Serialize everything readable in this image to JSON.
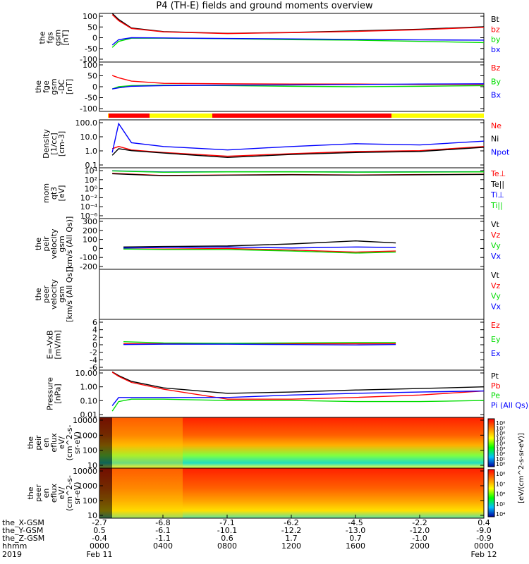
{
  "title": "P4 (TH-E) fields and ground moments overview",
  "colors": {
    "black": "#000000",
    "red": "#ff0000",
    "green": "#00dd00",
    "blue": "#0000ff",
    "yellow": "#ffff00"
  },
  "chart_data": [
    {
      "type": "line",
      "name": "fgs_gsm",
      "ylabel": [
        "the",
        "fgs",
        "gsm",
        "[nT]"
      ],
      "ylim": [
        -100,
        100
      ],
      "yticks": [
        "100",
        "50",
        "0",
        "-50",
        "-100"
      ],
      "legend": [
        "Bt",
        "bz",
        "by",
        "bx"
      ],
      "series": [
        {
          "name": "Bt",
          "color": "#000000",
          "x": [
            0.8,
            1.2,
            2,
            4,
            8,
            12,
            16,
            20,
            24
          ],
          "y": [
            100,
            75,
            40,
            25,
            18,
            22,
            28,
            35,
            45
          ]
        },
        {
          "name": "bz",
          "color": "#ff0000",
          "x": [
            0.8,
            1.2,
            2,
            4,
            8,
            12,
            16,
            20,
            24
          ],
          "y": [
            95,
            70,
            38,
            24,
            17,
            21,
            26,
            33,
            43
          ]
        },
        {
          "name": "by",
          "color": "#00dd00",
          "x": [
            0.8,
            1.2,
            2,
            4,
            8,
            12,
            16,
            20,
            24
          ],
          "y": [
            -40,
            -15,
            -2,
            -2,
            -4,
            -8,
            -10,
            -15,
            -20
          ]
        },
        {
          "name": "bx",
          "color": "#0000ff",
          "x": [
            0.8,
            1.2,
            2,
            4,
            8,
            12,
            16,
            20,
            24
          ],
          "y": [
            -30,
            -8,
            0,
            -1,
            -3,
            -5,
            -7,
            -9,
            -10
          ]
        }
      ]
    },
    {
      "type": "line",
      "name": "fge_gsm_dc",
      "ylabel": [
        "the",
        "fge",
        "gsm",
        "-DC",
        "[nT]"
      ],
      "ylim": [
        -120,
        100
      ],
      "yticks": [
        "100",
        "50",
        "0",
        "-50",
        "-100"
      ],
      "legend": [
        "Bz",
        "By",
        "Bx"
      ],
      "series": [
        {
          "name": "Bz",
          "color": "#ff0000",
          "x": [
            0.8,
            1.2,
            2,
            4,
            8,
            12,
            16,
            20,
            24
          ],
          "y": [
            40,
            30,
            15,
            5,
            3,
            2,
            2,
            0,
            0
          ]
        },
        {
          "name": "By",
          "color": "#00dd00",
          "x": [
            0.8,
            1.2,
            2,
            4,
            8,
            12,
            16,
            20,
            24
          ],
          "y": [
            -20,
            -10,
            -5,
            -3,
            -5,
            -8,
            -10,
            -8,
            -5
          ]
        },
        {
          "name": "Bx",
          "color": "#0000ff",
          "x": [
            0.8,
            1.2,
            2,
            4,
            8,
            12,
            16,
            20,
            24
          ],
          "y": [
            -20,
            -15,
            -8,
            -5,
            -3,
            -2,
            0,
            2,
            3
          ]
        }
      ]
    },
    {
      "type": "line",
      "name": "density",
      "ylabel": [
        "Density",
        "[1/cc]",
        "[cm-3]"
      ],
      "ylog": true,
      "ylim": [
        0.03,
        200
      ],
      "yticks": [
        "100.0",
        "10.0",
        "1.0",
        "0.1"
      ],
      "legend": [
        "Ne",
        "Ni",
        "Npot"
      ],
      "series": [
        {
          "name": "Ne",
          "color": "#ff0000",
          "x": [
            0.8,
            1.2,
            2,
            4,
            8,
            12,
            16,
            20,
            24
          ],
          "y": [
            1,
            1.5,
            0.8,
            0.5,
            0.25,
            0.4,
            0.6,
            0.7,
            1.5
          ]
        },
        {
          "name": "Ni",
          "color": "#000000",
          "x": [
            0.8,
            1.2,
            2,
            4,
            8,
            12,
            16,
            20,
            24
          ],
          "y": [
            0.3,
            1,
            0.7,
            0.45,
            0.2,
            0.35,
            0.5,
            0.6,
            1.3
          ]
        },
        {
          "name": "Npot",
          "color": "#0000ff",
          "x": [
            0.8,
            1.2,
            2,
            4,
            8,
            12,
            16,
            20,
            24
          ],
          "y": [
            0.5,
            100,
            3,
            1.5,
            0.8,
            1.5,
            2.5,
            2,
            4
          ]
        }
      ]
    },
    {
      "type": "line",
      "name": "temperature",
      "ylabel": [
        "mom",
        "qt3",
        "[eV]"
      ],
      "ylog": true,
      "ylim": [
        1e-07,
        100000
      ],
      "yticks": [
        "10⁴",
        "10²",
        "10⁰",
        "10⁻²",
        "10⁻⁴",
        "10⁻⁶"
      ],
      "legend": [
        "Te⊥",
        "Te||",
        "Ti⊥",
        "Ti||"
      ],
      "series": [
        {
          "name": "Te⊥",
          "color": "#ff0000",
          "x": [
            0.8,
            4,
            8,
            12,
            16,
            20,
            24
          ],
          "y": [
            5000,
            1500,
            2000,
            2500,
            2000,
            2500,
            3000
          ]
        },
        {
          "name": "Te||",
          "color": "#000000",
          "x": [
            0.8,
            4,
            8,
            12,
            16,
            20,
            24
          ],
          "y": [
            4000,
            1300,
            1800,
            2200,
            1800,
            2200,
            2700
          ]
        },
        {
          "name": "Ti⊥",
          "color": "#0000ff",
          "x": [
            0.8,
            4,
            8,
            12,
            16,
            20,
            24
          ],
          "y": [
            20000,
            10000,
            12000,
            12000,
            10000,
            11000,
            12000
          ]
        },
        {
          "name": "Ti||",
          "color": "#00dd00",
          "x": [
            0.8,
            4,
            8,
            12,
            16,
            20,
            24
          ],
          "y": [
            18000,
            9000,
            11000,
            11000,
            9500,
            10000,
            11000
          ]
        }
      ]
    },
    {
      "type": "line",
      "name": "peir_velocity",
      "ylabel": [
        "the",
        "peir",
        "velocity",
        "gsm",
        "[km/s (All Qs)]"
      ],
      "ylim": [
        -200,
        300
      ],
      "yticks": [
        "300",
        "200",
        "100",
        "0",
        "-100",
        "-200"
      ],
      "legend": [
        "Vt",
        "Vz",
        "Vy",
        "Vx"
      ],
      "series": [
        {
          "name": "Vt",
          "color": "#000000",
          "x": [
            1.5,
            4,
            8,
            12,
            16,
            18.5
          ],
          "y": [
            20,
            25,
            30,
            50,
            80,
            60
          ]
        },
        {
          "name": "Vz",
          "color": "#ff0000",
          "x": [
            1.5,
            4,
            8,
            12,
            16,
            18.5
          ],
          "y": [
            0,
            0,
            5,
            -10,
            -30,
            -20
          ]
        },
        {
          "name": "Vy",
          "color": "#00dd00",
          "x": [
            1.5,
            4,
            8,
            12,
            16,
            18.5
          ],
          "y": [
            0,
            -5,
            -5,
            -20,
            -40,
            -30
          ]
        },
        {
          "name": "Vx",
          "color": "#0000ff",
          "x": [
            1.5,
            4,
            8,
            12,
            16,
            18.5
          ],
          "y": [
            10,
            15,
            20,
            10,
            20,
            15
          ]
        }
      ]
    },
    {
      "type": "line",
      "name": "peer_velocity",
      "ylabel": [
        "the",
        "peer",
        "velocity",
        "gsm",
        "[km/s (All Qs)]"
      ],
      "legend": [
        "Vt",
        "Vz",
        "Vy",
        "Vx"
      ],
      "series": []
    },
    {
      "type": "line",
      "name": "e_vxb",
      "ylabel": [
        "E=-VxB",
        "[mV/m]"
      ],
      "ylim": [
        -6.5,
        6
      ],
      "yticks": [
        "6",
        "4",
        "2",
        "0",
        "-2",
        "-4",
        "-6"
      ],
      "legend": [
        "Ez",
        "Ey",
        "Ex"
      ],
      "series": [
        {
          "name": "Ez",
          "color": "#ff0000",
          "x": [
            1.5,
            4,
            8,
            12,
            16,
            18.5
          ],
          "y": [
            0,
            0,
            0,
            0,
            0,
            0
          ]
        },
        {
          "name": "Ey",
          "color": "#00dd00",
          "x": [
            1.5,
            4,
            8,
            12,
            16,
            18.5
          ],
          "y": [
            0.5,
            0.2,
            0.1,
            0.2,
            0.3,
            0.3
          ]
        },
        {
          "name": "Ex",
          "color": "#0000ff",
          "x": [
            1.5,
            4,
            8,
            12,
            16,
            18.5
          ],
          "y": [
            -0.2,
            -0.1,
            -0.1,
            -0.2,
            -0.3,
            -0.2
          ]
        }
      ]
    },
    {
      "type": "line",
      "name": "pressure",
      "ylabel": [
        "Pressure",
        "[nPa]"
      ],
      "ylog": true,
      "ylim": [
        0.007,
        20
      ],
      "yticks": [
        "10.00",
        "1.00",
        "0.10",
        "0.01"
      ],
      "legend": [
        "Pt",
        "Pb",
        "Pe",
        "Pi (All Qs)"
      ],
      "series": [
        {
          "name": "Pt",
          "color": "#000000",
          "x": [
            0.8,
            1.2,
            2,
            4,
            8,
            12,
            16,
            20,
            24
          ],
          "y": [
            15,
            8,
            3,
            1,
            0.4,
            0.5,
            0.7,
            0.9,
            1.2
          ]
        },
        {
          "name": "Pb",
          "color": "#ff0000",
          "x": [
            0.8,
            1.2,
            2,
            4,
            8,
            12,
            16,
            20,
            24
          ],
          "y": [
            14,
            7,
            2.5,
            0.8,
            0.15,
            0.15,
            0.2,
            0.3,
            0.6
          ]
        },
        {
          "name": "Pe",
          "color": "#00dd00",
          "x": [
            0.8,
            1.2,
            2,
            4,
            8,
            12,
            16,
            20,
            24
          ],
          "y": [
            0.02,
            0.1,
            0.15,
            0.15,
            0.12,
            0.12,
            0.1,
            0.1,
            0.12
          ]
        },
        {
          "name": "Pi",
          "color": "#0000ff",
          "x": [
            0.8,
            1.2,
            2,
            4,
            8,
            12,
            16,
            20,
            24
          ],
          "y": [
            0.05,
            0.2,
            0.2,
            0.2,
            0.2,
            0.3,
            0.4,
            0.5,
            0.6
          ]
        }
      ]
    },
    {
      "type": "heatmap",
      "name": "peir_en_eflux",
      "ylabel": [
        "the",
        "peir",
        "en",
        "eflux",
        "eV/",
        "(cm^2-s-",
        "sr-eV)"
      ],
      "ylog": true,
      "ylim": [
        5,
        20000
      ],
      "yticks": [
        "10000",
        "1000",
        "100",
        "10"
      ],
      "colorbar": {
        "label": "[eV/(cm^2-s-sr-eV)]",
        "ticks": [
          "10⁸",
          "10⁷",
          "10⁶",
          "10⁵",
          "10⁴",
          "10³",
          "10²",
          "10¹",
          "10⁰"
        ]
      }
    },
    {
      "type": "heatmap",
      "name": "peer_en_eflux",
      "ylabel": [
        "the",
        "peer",
        "en",
        "eflux",
        "eV/",
        "(cm^2-s-",
        "sr-eV)"
      ],
      "ylog": true,
      "ylim": [
        5,
        20000
      ],
      "yticks": [
        "10000",
        "1000",
        "100",
        "10"
      ],
      "colorbar": {
        "label": "[eV/(cm^2-s-sr-eV)]",
        "ticks": [
          "10⁸",
          "10⁷",
          "10⁶",
          "10⁵",
          "10⁴"
        ]
      }
    }
  ],
  "xaxis": {
    "rows": [
      {
        "label": "the_X-GSM",
        "values": [
          "-2.7",
          "-6.8",
          "-7.1",
          "-6.2",
          "-4.5",
          "-2.2",
          "0.4"
        ]
      },
      {
        "label": "the_Y-GSM",
        "values": [
          "0.5",
          "-6.1",
          "-10.1",
          "-12.2",
          "-13.0",
          "-12.0",
          "-9.0"
        ]
      },
      {
        "label": "the_Z-GSM",
        "values": [
          "-0.4",
          "-1.1",
          "0.6",
          "1.7",
          "0.7",
          "-1.0",
          "-0.9"
        ]
      },
      {
        "label": "hhmm",
        "values": [
          "0000",
          "0400",
          "0800",
          "1200",
          "1600",
          "2000",
          "0000"
        ]
      },
      {
        "label": "2019",
        "values": [
          "Feb 11",
          "",
          "",
          "",
          "",
          "",
          "Feb 12"
        ]
      }
    ]
  }
}
